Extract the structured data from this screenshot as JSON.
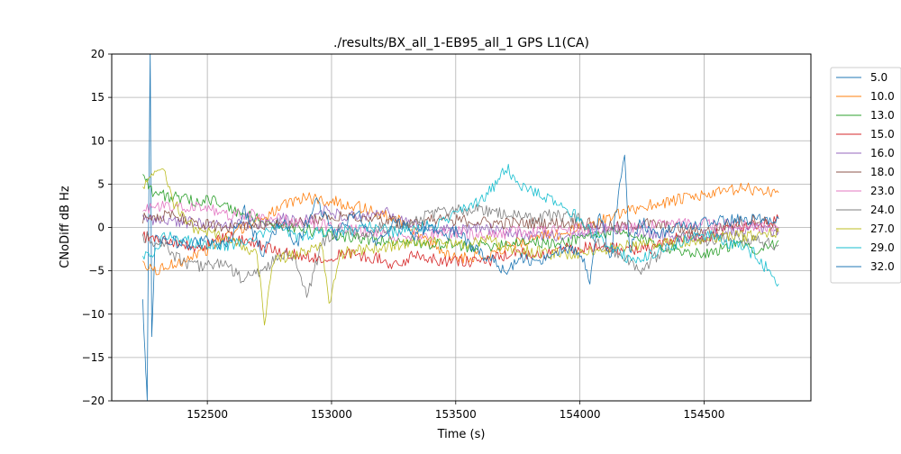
{
  "chart_data": {
    "type": "line",
    "title": "./results/BX_all_1-EB95_all_1 GPS L1(CA)",
    "xlabel": "Time (s)",
    "ylabel": "CNoDiff dB Hz",
    "xlim": [
      152115,
      154930
    ],
    "ylim": [
      -20,
      20
    ],
    "xticks": [
      152500,
      153000,
      153500,
      154000,
      154500
    ],
    "yticks": [
      -20,
      -15,
      -10,
      -5,
      0,
      5,
      10,
      15,
      20
    ],
    "grid": true,
    "legend_position": "outside-right",
    "series": [
      {
        "name": "5.0",
        "color": "#1f77b4",
        "points": [
          [
            152240,
            -8.5
          ],
          [
            152246,
            -13
          ],
          [
            152252,
            -17
          ],
          [
            152258,
            -19.5
          ],
          [
            152264,
            2
          ],
          [
            152270,
            20
          ],
          [
            152276,
            -13
          ],
          [
            152290,
            -1
          ]
        ]
      },
      {
        "name": "10.0",
        "color": "#ff7f0e",
        "points": [
          [
            152240,
            -4.5
          ],
          [
            152300,
            -5
          ],
          [
            152380,
            -4
          ],
          [
            152500,
            -2.5
          ],
          [
            152640,
            0
          ],
          [
            152780,
            2
          ],
          [
            152880,
            3.5
          ],
          [
            153000,
            3
          ],
          [
            153100,
            2.5
          ],
          [
            153200,
            1.5
          ],
          [
            153300,
            0.5
          ],
          [
            153400,
            -2
          ],
          [
            153500,
            -3.5
          ],
          [
            153620,
            -3.2
          ],
          [
            153740,
            -1.8
          ],
          [
            153860,
            -1
          ],
          [
            153960,
            -0.5
          ],
          [
            154060,
            0.5
          ],
          [
            154160,
            1.5
          ],
          [
            154260,
            2.5
          ],
          [
            154360,
            3
          ],
          [
            154460,
            3.5
          ],
          [
            154560,
            4
          ],
          [
            154660,
            4.5
          ],
          [
            154800,
            4
          ]
        ]
      },
      {
        "name": "13.0",
        "color": "#2ca02c",
        "points": [
          [
            152240,
            6.5
          ],
          [
            152280,
            4
          ],
          [
            152360,
            3.5
          ],
          [
            152440,
            3
          ],
          [
            152520,
            3.2
          ],
          [
            152600,
            2
          ],
          [
            152700,
            1
          ],
          [
            152820,
            0
          ],
          [
            152940,
            -0.5
          ],
          [
            153060,
            -1
          ],
          [
            153180,
            -1.5
          ],
          [
            153300,
            -1.5
          ],
          [
            153420,
            -2
          ],
          [
            153540,
            -2.2
          ],
          [
            153660,
            -2
          ],
          [
            153780,
            -1.5
          ],
          [
            153900,
            -2
          ],
          [
            154020,
            -1
          ],
          [
            154140,
            -0.5
          ],
          [
            154260,
            -1.5
          ],
          [
            154380,
            -2.5
          ],
          [
            154500,
            -3
          ],
          [
            154620,
            -2
          ],
          [
            154720,
            -2.5
          ],
          [
            154800,
            -1.5
          ]
        ]
      },
      {
        "name": "15.0",
        "color": "#d62728",
        "points": [
          [
            152240,
            -1
          ],
          [
            152340,
            -1.5
          ],
          [
            152460,
            -2.5
          ],
          [
            152580,
            -1
          ],
          [
            152700,
            -2
          ],
          [
            152820,
            -3
          ],
          [
            152940,
            -3.5
          ],
          [
            153060,
            -3
          ],
          [
            153180,
            -3.5
          ],
          [
            153260,
            -4.5
          ],
          [
            153340,
            -3
          ],
          [
            153440,
            -3.8
          ],
          [
            153540,
            -4
          ],
          [
            153640,
            -3.8
          ],
          [
            153740,
            -3
          ],
          [
            153840,
            -3
          ],
          [
            153940,
            -2.5
          ],
          [
            154040,
            -2.2
          ],
          [
            154160,
            -2.5
          ],
          [
            154280,
            -2.5
          ],
          [
            154400,
            -1
          ],
          [
            154520,
            -1
          ],
          [
            154640,
            0
          ],
          [
            154740,
            0.5
          ],
          [
            154800,
            1
          ]
        ]
      },
      {
        "name": "16.0",
        "color": "#9467bd",
        "points": [
          [
            152240,
            1
          ],
          [
            152340,
            0.8
          ],
          [
            152460,
            0.5
          ],
          [
            152580,
            0.3
          ],
          [
            152700,
            0.5
          ],
          [
            152800,
            1
          ],
          [
            152880,
            0.5
          ],
          [
            152960,
            2
          ],
          [
            153040,
            1.5
          ],
          [
            153120,
            1
          ],
          [
            153200,
            2
          ],
          [
            153300,
            0.5
          ],
          [
            153400,
            0
          ],
          [
            153500,
            -0.5
          ],
          [
            153600,
            0
          ],
          [
            153700,
            -0.5
          ],
          [
            153800,
            -1
          ],
          [
            153900,
            -1
          ],
          [
            154000,
            -0.5
          ],
          [
            154120,
            0
          ],
          [
            154240,
            -0.5
          ],
          [
            154360,
            -1
          ],
          [
            154480,
            -1
          ],
          [
            154600,
            -0.5
          ],
          [
            154700,
            0
          ],
          [
            154800,
            -0.5
          ]
        ]
      },
      {
        "name": "18.0",
        "color": "#8c564b",
        "points": [
          [
            152240,
            1
          ],
          [
            152340,
            1.5
          ],
          [
            152460,
            0.5
          ],
          [
            152580,
            0
          ],
          [
            152700,
            0.5
          ],
          [
            152820,
            0.2
          ],
          [
            152940,
            1
          ],
          [
            153060,
            1.5
          ],
          [
            153180,
            1
          ],
          [
            153300,
            0.5
          ],
          [
            153420,
            1
          ],
          [
            153540,
            0.8
          ],
          [
            153660,
            0.5
          ],
          [
            153780,
            0.5
          ],
          [
            153900,
            0.5
          ],
          [
            154020,
            0.5
          ],
          [
            154140,
            0
          ],
          [
            154260,
            0.5
          ],
          [
            154380,
            0
          ],
          [
            154500,
            -0.5
          ],
          [
            154620,
            0.5
          ],
          [
            154720,
            1
          ],
          [
            154800,
            0
          ]
        ]
      },
      {
        "name": "23.0",
        "color": "#e377c2",
        "points": [
          [
            152240,
            2
          ],
          [
            152320,
            2.5
          ],
          [
            152400,
            2.2
          ],
          [
            152480,
            2.5
          ],
          [
            152560,
            1.5
          ],
          [
            152660,
            1.5
          ],
          [
            152780,
            1
          ],
          [
            152900,
            0.5
          ],
          [
            153020,
            0
          ],
          [
            153140,
            -0.5
          ],
          [
            153260,
            -1
          ],
          [
            153380,
            -1
          ],
          [
            153500,
            -0.5
          ],
          [
            153620,
            -1
          ],
          [
            153740,
            -0.5
          ],
          [
            153860,
            -0.5
          ],
          [
            153980,
            -0.3
          ],
          [
            154100,
            0
          ],
          [
            154220,
            0
          ],
          [
            154340,
            0.5
          ],
          [
            154460,
            0.5
          ],
          [
            154580,
            0.3
          ],
          [
            154700,
            0
          ],
          [
            154800,
            0
          ]
        ]
      },
      {
        "name": "24.0",
        "color": "#7f7f7f",
        "points": [
          [
            152240,
            -1
          ],
          [
            152320,
            -2
          ],
          [
            152400,
            -4
          ],
          [
            152480,
            -4.5
          ],
          [
            152560,
            -4
          ],
          [
            152640,
            -6
          ],
          [
            152720,
            -5
          ],
          [
            152800,
            -3
          ],
          [
            152860,
            -4
          ],
          [
            152900,
            -8
          ],
          [
            152960,
            -2
          ],
          [
            153040,
            0
          ],
          [
            153120,
            -1
          ],
          [
            153200,
            0
          ],
          [
            153300,
            0.5
          ],
          [
            153400,
            1.5
          ],
          [
            153500,
            2
          ],
          [
            153600,
            2
          ],
          [
            153700,
            1.5
          ],
          [
            153800,
            1
          ],
          [
            153900,
            1.5
          ],
          [
            154000,
            1
          ],
          [
            154080,
            -2
          ],
          [
            154160,
            -3
          ],
          [
            154240,
            -5
          ],
          [
            154320,
            -3
          ],
          [
            154400,
            -1
          ],
          [
            154500,
            -1.5
          ],
          [
            154600,
            -1
          ],
          [
            154700,
            -1.5
          ],
          [
            154800,
            -2
          ]
        ]
      },
      {
        "name": "27.0",
        "color": "#bcbd22",
        "points": [
          [
            152240,
            4
          ],
          [
            152270,
            6
          ],
          [
            152300,
            7
          ],
          [
            152330,
            6
          ],
          [
            152360,
            3
          ],
          [
            152440,
            0
          ],
          [
            152540,
            -1
          ],
          [
            152640,
            -2
          ],
          [
            152700,
            -3
          ],
          [
            152730,
            -11
          ],
          [
            152760,
            -4
          ],
          [
            152860,
            -3
          ],
          [
            152960,
            -2
          ],
          [
            152990,
            -9
          ],
          [
            153040,
            -3
          ],
          [
            153140,
            -2.5
          ],
          [
            153260,
            -2
          ],
          [
            153380,
            -1.5
          ],
          [
            153500,
            -2
          ],
          [
            153620,
            -1.5
          ],
          [
            153740,
            -2.5
          ],
          [
            153860,
            -3
          ],
          [
            153980,
            -3
          ],
          [
            154100,
            -2.5
          ],
          [
            154220,
            -2
          ],
          [
            154340,
            -1.8
          ],
          [
            154460,
            -1.5
          ],
          [
            154580,
            -1
          ],
          [
            154700,
            -1
          ],
          [
            154800,
            -0.5
          ]
        ]
      },
      {
        "name": "29.0",
        "color": "#17becf",
        "points": [
          [
            152240,
            -3
          ],
          [
            152280,
            -3.5
          ],
          [
            152320,
            -1
          ],
          [
            152400,
            -1.5
          ],
          [
            152500,
            -2
          ],
          [
            152600,
            -2
          ],
          [
            152700,
            -1
          ],
          [
            152780,
            0
          ],
          [
            152860,
            -1
          ],
          [
            152960,
            -0.5
          ],
          [
            153060,
            -0.5
          ],
          [
            153160,
            0
          ],
          [
            153260,
            -0.5
          ],
          [
            153360,
            0
          ],
          [
            153440,
            0.5
          ],
          [
            153520,
            2
          ],
          [
            153600,
            3
          ],
          [
            153660,
            5
          ],
          [
            153700,
            7
          ],
          [
            153760,
            5
          ],
          [
            153820,
            4
          ],
          [
            153900,
            3
          ],
          [
            153980,
            1.5
          ],
          [
            154060,
            -1
          ],
          [
            154140,
            -2.5
          ],
          [
            154220,
            -4
          ],
          [
            154300,
            -3
          ],
          [
            154380,
            -2
          ],
          [
            154460,
            -1
          ],
          [
            154540,
            -1
          ],
          [
            154620,
            -2
          ],
          [
            154700,
            -3
          ],
          [
            154760,
            -5
          ],
          [
            154800,
            -6.5
          ]
        ]
      },
      {
        "name": "32.0",
        "color": "#1f77b4",
        "points": [
          [
            152290,
            -1
          ],
          [
            152340,
            -1.5
          ],
          [
            152420,
            -2
          ],
          [
            152500,
            -1.5
          ],
          [
            152580,
            -2
          ],
          [
            152650,
            2
          ],
          [
            152720,
            -3
          ],
          [
            152800,
            1
          ],
          [
            152860,
            -2
          ],
          [
            152940,
            3
          ],
          [
            153020,
            -1
          ],
          [
            153100,
            2
          ],
          [
            153180,
            -2
          ],
          [
            153260,
            1
          ],
          [
            153340,
            -1
          ],
          [
            153400,
            0
          ],
          [
            153460,
            -1
          ],
          [
            153500,
            -0.5
          ],
          [
            153560,
            -2
          ],
          [
            153600,
            -3
          ],
          [
            153660,
            -4
          ],
          [
            153700,
            -5
          ],
          [
            153760,
            -3.5
          ],
          [
            153820,
            -4
          ],
          [
            153880,
            -3
          ],
          [
            153940,
            -2.5
          ],
          [
            154000,
            -3
          ],
          [
            154040,
            -6
          ],
          [
            154080,
            2
          ],
          [
            154120,
            -4
          ],
          [
            154160,
            5
          ],
          [
            154180,
            9
          ],
          [
            154200,
            -3
          ],
          [
            154240,
            1
          ],
          [
            154300,
            -1
          ],
          [
            154400,
            0
          ],
          [
            154500,
            0.5
          ],
          [
            154600,
            0.8
          ],
          [
            154700,
            1
          ],
          [
            154800,
            1
          ]
        ]
      }
    ]
  }
}
